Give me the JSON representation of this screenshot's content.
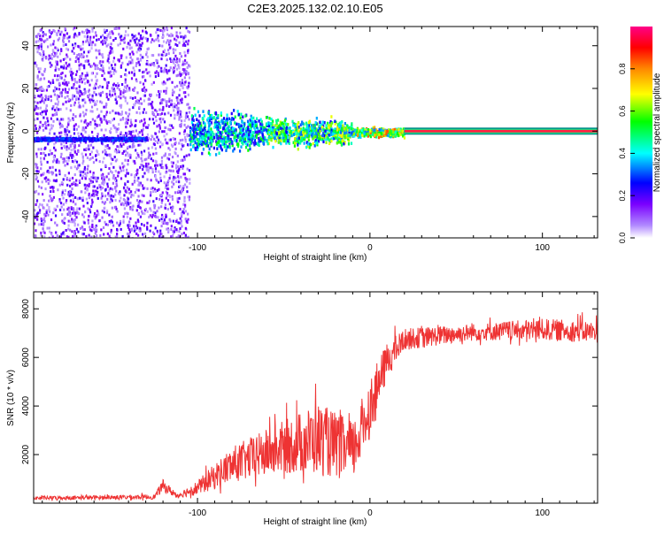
{
  "title": "C2E3.2025.132.02.10.E05",
  "chart_data": [
    {
      "type": "heatmap",
      "xlabel": "Height of straight line (km)",
      "ylabel": "Frequency (Hz)",
      "xlim": [
        -195,
        132
      ],
      "ylim": [
        -50,
        49
      ],
      "x_ticks": [
        -100,
        0,
        100
      ],
      "x_tick_labels": [
        "-100",
        "0",
        "100"
      ],
      "y_ticks": [
        -40,
        -20,
        0,
        20,
        40
      ],
      "y_tick_labels": [
        "-40",
        "-20",
        "0",
        "20",
        "40"
      ],
      "colorbar": {
        "label": "Normalized spectral amplitude",
        "range": [
          0,
          1
        ],
        "ticks": [
          0.0,
          0.2,
          0.4,
          0.6,
          0.8
        ],
        "tick_labels": [
          "0.0",
          "0.2",
          "0.4",
          "0.6",
          "0.8"
        ],
        "colormap": [
          "#ffffff",
          "#7700ff",
          "#0000ff",
          "#00ffff",
          "#00ff00",
          "#ffff00",
          "#ff8800",
          "#ff0000",
          "#ff0088"
        ]
      },
      "grid": false,
      "regions": [
        {
          "x_range": [
            -195,
            -105
          ],
          "freq_range": [
            -50,
            49
          ],
          "level": 0.15
        },
        {
          "x_range": [
            -195,
            -130
          ],
          "freq_center": -4,
          "level": 0.25
        },
        {
          "x_range": [
            -105,
            -60
          ],
          "freq_range": [
            -10,
            8
          ],
          "level": 0.4
        },
        {
          "x_range": [
            -60,
            -10
          ],
          "freq_range": [
            -6,
            6
          ],
          "level": 0.5
        },
        {
          "x_range": [
            -10,
            20
          ],
          "freq_range": [
            -2,
            2
          ],
          "level": 0.6
        },
        {
          "x_range": [
            20,
            132
          ],
          "freq_center": 0,
          "level": 1.0
        }
      ]
    },
    {
      "type": "line",
      "xlabel": "Height of straight line (km)",
      "ylabel": "SNR (10 * v/v)",
      "xlim": [
        -195,
        132
      ],
      "ylim": [
        0,
        8700
      ],
      "x_ticks": [
        -100,
        0,
        100
      ],
      "x_tick_labels": [
        "-100",
        "0",
        "100"
      ],
      "y_ticks": [
        2000,
        4000,
        6000,
        8000
      ],
      "y_tick_labels": [
        "2000",
        "4000",
        "6000",
        "8000"
      ],
      "grid": false,
      "color": "#ee3333",
      "envelope": [
        {
          "x": -195,
          "base": 200,
          "amp": 150
        },
        {
          "x": -125,
          "base": 250,
          "amp": 200
        },
        {
          "x": -120,
          "base": 700,
          "amp": 500
        },
        {
          "x": -112,
          "base": 300,
          "amp": 200
        },
        {
          "x": -100,
          "base": 600,
          "amp": 600
        },
        {
          "x": -80,
          "base": 1500,
          "amp": 1500
        },
        {
          "x": -50,
          "base": 2200,
          "amp": 2200
        },
        {
          "x": -30,
          "base": 2500,
          "amp": 3000
        },
        {
          "x": -10,
          "base": 2000,
          "amp": 2500
        },
        {
          "x": 0,
          "base": 3800,
          "amp": 2500
        },
        {
          "x": 10,
          "base": 5800,
          "amp": 1500
        },
        {
          "x": 20,
          "base": 6700,
          "amp": 900
        },
        {
          "x": 60,
          "base": 7000,
          "amp": 700
        },
        {
          "x": 100,
          "base": 7100,
          "amp": 900
        },
        {
          "x": 132,
          "base": 7000,
          "amp": 900
        }
      ]
    }
  ]
}
